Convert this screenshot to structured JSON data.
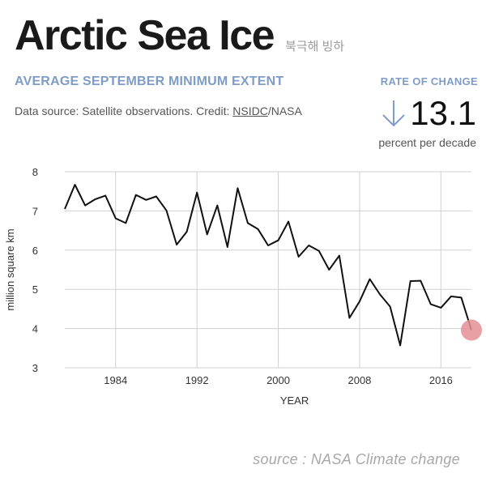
{
  "header": {
    "title": "Arctic Sea Ice",
    "subtitle_ko": "북극해 빙하",
    "section_heading": "AVERAGE SEPTEMBER MINIMUM EXTENT",
    "source_prefix": "Data source: Satellite observations. Credit: ",
    "source_link": "NSIDC",
    "source_suffix": "/NASA"
  },
  "rate": {
    "label": "RATE OF CHANGE",
    "arrow_icon": "down-arrow-icon",
    "value": "13.1",
    "unit": "percent per decade",
    "accent_color": "#7f9cc6"
  },
  "footer": {
    "source": "source : NASA Climate change"
  },
  "chart_data": {
    "type": "line",
    "xlabel": "YEAR",
    "ylabel": "million square km",
    "xlim": [
      1979,
      2019
    ],
    "ylim": [
      3,
      8
    ],
    "x_ticks": [
      1984,
      1992,
      2000,
      2008,
      2016
    ],
    "y_ticks": [
      3,
      4,
      5,
      6,
      7,
      8
    ],
    "grid": true,
    "line_color": "#111111",
    "highlight_color": "#e58f94",
    "x": [
      1979,
      1980,
      1981,
      1982,
      1983,
      1984,
      1985,
      1986,
      1987,
      1988,
      1989,
      1990,
      1991,
      1992,
      1993,
      1994,
      1995,
      1996,
      1997,
      1998,
      1999,
      2000,
      2001,
      2002,
      2003,
      2004,
      2005,
      2006,
      2007,
      2008,
      2009,
      2010,
      2011,
      2012,
      2013,
      2014,
      2015,
      2016,
      2017,
      2018,
      2019
    ],
    "series": [
      {
        "values": [
          7.05,
          7.67,
          7.14,
          7.3,
          7.39,
          6.81,
          6.69,
          7.41,
          7.28,
          7.37,
          7.01,
          6.14,
          6.47,
          7.47,
          6.4,
          7.14,
          6.08,
          7.58,
          6.69,
          6.54,
          6.12,
          6.25,
          6.73,
          5.83,
          6.12,
          5.98,
          5.5,
          5.86,
          4.27,
          4.69,
          5.26,
          4.87,
          4.56,
          3.57,
          5.21,
          5.22,
          4.62,
          4.53,
          4.82,
          4.79,
          3.96
        ]
      }
    ],
    "highlight_point": {
      "x": 2019,
      "y": 3.96
    }
  }
}
